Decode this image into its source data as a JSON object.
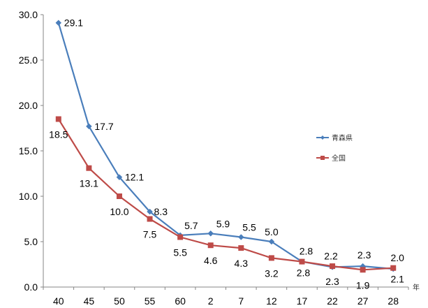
{
  "chart_data": {
    "type": "line",
    "title": "",
    "xlabel": "",
    "ylabel": "",
    "x_unit": "年",
    "categories": [
      "40",
      "45",
      "50",
      "55",
      "60",
      "2",
      "7",
      "12",
      "17",
      "22",
      "27",
      "28"
    ],
    "ylim": [
      0.0,
      30.0
    ],
    "yticks": [
      "0.0",
      "5.0",
      "10.0",
      "15.0",
      "20.0",
      "25.0",
      "30.0"
    ],
    "grid": false,
    "legend_position": "right",
    "series": [
      {
        "name": "青森県",
        "color": "#4a7ebb",
        "marker": "diamond",
        "values": [
          29.1,
          17.7,
          12.1,
          8.3,
          5.7,
          5.9,
          5.5,
          5.0,
          2.8,
          2.2,
          2.3,
          2.0
        ],
        "labels": [
          "29.1",
          "17.7",
          "12.1",
          "8.3",
          "5.7",
          "5.9",
          "5.5",
          "5.0",
          "2.8",
          "2.2",
          "2.3",
          "2.0"
        ]
      },
      {
        "name": "全国",
        "color": "#be4b48",
        "marker": "square",
        "values": [
          18.5,
          13.1,
          10.0,
          7.5,
          5.5,
          4.6,
          4.3,
          3.2,
          2.8,
          2.3,
          1.9,
          2.1
        ],
        "labels": [
          "18.5",
          "13.1",
          "10.0",
          "7.5",
          "5.5",
          "4.6",
          "4.3",
          "3.2",
          "2.8",
          "2.3",
          "1.9",
          "2.1"
        ]
      }
    ]
  }
}
